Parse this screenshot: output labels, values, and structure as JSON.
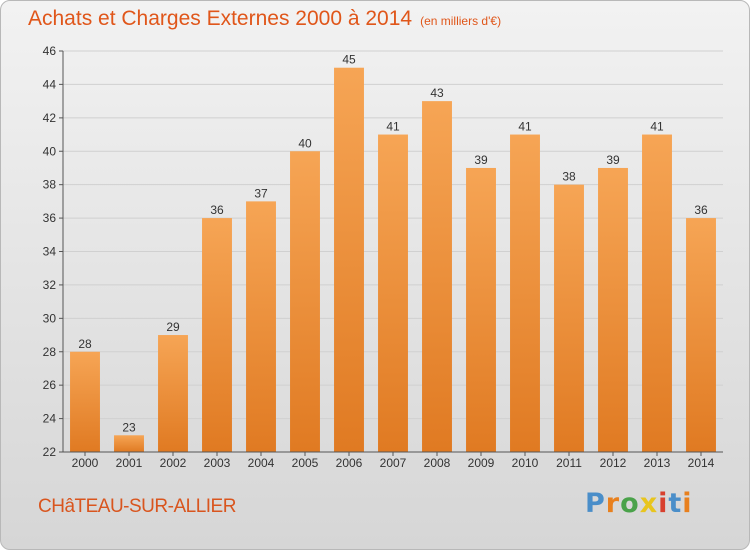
{
  "header": {
    "title": "Achats et Charges Externes 2000 à 2014",
    "unit": "(en milliers d'€)"
  },
  "footer": {
    "commune": "CHâTEAU-SUR-ALLIER",
    "logo": "Proxiti",
    "logo_colors": [
      "#4a8ec9",
      "#e8801e",
      "#4aa24a",
      "#e8c51e",
      "#d8402e",
      "#4a8ec9",
      "#e8801e"
    ]
  },
  "colors": {
    "bar_top": "#f6a555",
    "bar_bottom": "#e07a22",
    "grid": "#d0d0d0",
    "axis": "#555555"
  },
  "chart_data": {
    "type": "bar",
    "title": "Achats et Charges Externes 2000 à 2014",
    "subtitle": "(en milliers d'€)",
    "categories": [
      "2000",
      "2001",
      "2002",
      "2003",
      "2004",
      "2005",
      "2006",
      "2007",
      "2008",
      "2009",
      "2010",
      "2011",
      "2012",
      "2013",
      "2014"
    ],
    "values": [
      28,
      23,
      29,
      36,
      37,
      40,
      45,
      41,
      43,
      39,
      41,
      38,
      39,
      41,
      36
    ],
    "ylim": [
      22,
      46
    ],
    "yticks": [
      22,
      24,
      26,
      28,
      30,
      32,
      34,
      36,
      38,
      40,
      42,
      44,
      46
    ],
    "grid": true,
    "xlabel": "",
    "ylabel": ""
  }
}
